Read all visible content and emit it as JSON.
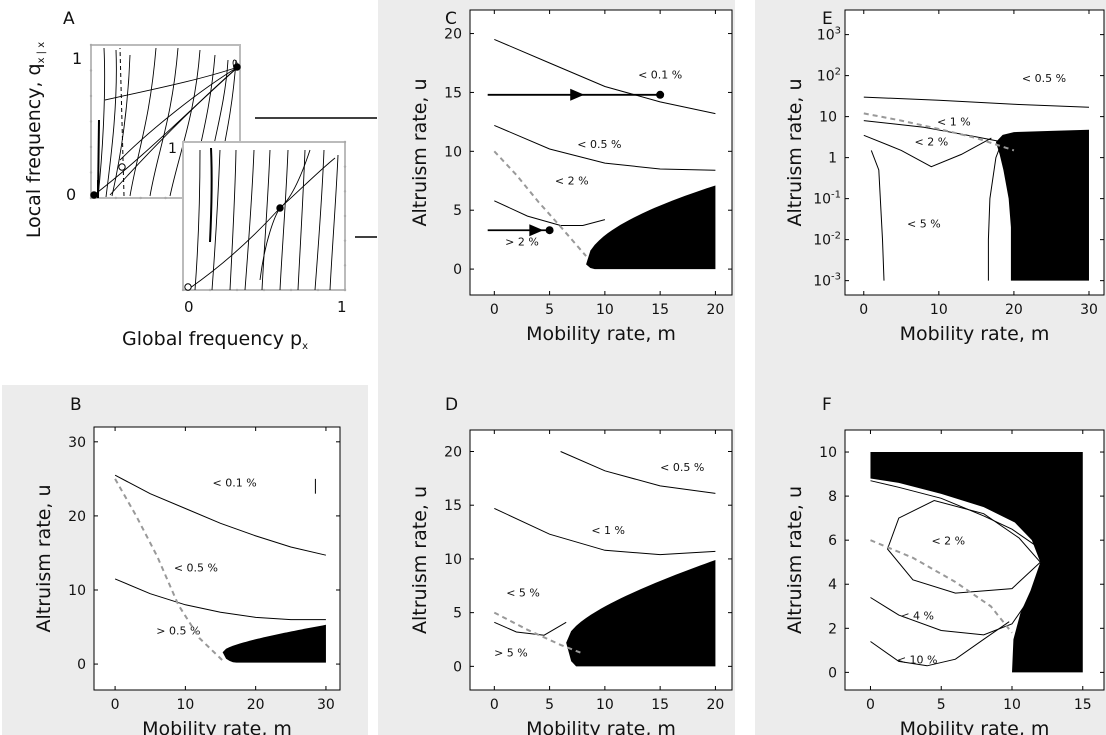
{
  "chart_data": [
    {
      "panel": "A",
      "type": "line",
      "xlabel": "Global frequency p",
      "xlabel_sub": "x",
      "ylabel": "Local frequency, q",
      "ylabel_sub": "x | x",
      "back_ticks": {
        "y": [
          "0",
          "1"
        ],
        "x_mark": "1"
      },
      "front_ticks": {
        "x": [
          "0",
          "1"
        ]
      },
      "xlim": [
        0,
        1
      ],
      "ylim": [
        0,
        1
      ],
      "back_points": [
        {
          "x": 0.0,
          "y": 0.0,
          "kind": "stable"
        },
        {
          "x": 0.22,
          "y": 0.22,
          "kind": "unstable"
        },
        {
          "x": 1.0,
          "y": 1.0,
          "kind": "stable"
        }
      ],
      "front_points": [
        {
          "x": 0.0,
          "y": 0.0,
          "kind": "unstable"
        },
        {
          "x": 0.6,
          "y": 0.6,
          "kind": "stable"
        }
      ]
    },
    {
      "panel": "B",
      "type": "line",
      "xlabel": "Mobility rate, m",
      "ylabel": "Altruism rate, u",
      "xlim": [
        -3,
        32
      ],
      "ylim": [
        -3.5,
        32
      ],
      "xticks": [
        0,
        10,
        20,
        30
      ],
      "yticks": [
        0,
        10,
        20,
        30
      ],
      "contours": [
        {
          "label": "< 0.1 %",
          "label_at": [
            17,
            24
          ],
          "points": [
            [
              0,
              25.5
            ],
            [
              5,
              23
            ],
            [
              10,
              21
            ],
            [
              15,
              19
            ],
            [
              20,
              17.3
            ],
            [
              25,
              15.8
            ],
            [
              30,
              14.7
            ]
          ]
        },
        {
          "label": "< 0.5 %",
          "label_at": [
            11.5,
            12.5
          ],
          "points": [
            [
              0,
              11.5
            ],
            [
              5,
              9.5
            ],
            [
              10,
              8
            ],
            [
              15,
              7
            ],
            [
              20,
              6.3
            ],
            [
              25,
              6
            ],
            [
              30,
              6
            ]
          ]
        }
      ],
      "region_labels": [
        {
          "text": "> 0.5 %",
          "at": [
            9,
            4
          ]
        }
      ],
      "dashed": [
        [
          0,
          25
        ],
        [
          3,
          20
        ],
        [
          6,
          14.5
        ],
        [
          9,
          8
        ],
        [
          12,
          3.5
        ],
        [
          15.5,
          0.3
        ]
      ],
      "filled_region": {
        "m_start": 15.3,
        "m_end": 30,
        "u_min": 0.2,
        "u_max_at_end": 5.3
      },
      "tick_mark": {
        "x": 28.5,
        "y_from": 23,
        "y_to": 25
      }
    },
    {
      "panel": "C",
      "type": "line",
      "xlabel": "Mobility rate, m",
      "ylabel": "Altruism rate, u",
      "xlim": [
        -2.2,
        21.5
      ],
      "ylim": [
        -2.2,
        22
      ],
      "xticks": [
        0,
        5,
        10,
        15,
        20
      ],
      "yticks": [
        0,
        5,
        10,
        15,
        20
      ],
      "contours": [
        {
          "label": "< 0.1 %",
          "label_at": [
            15,
            16.2
          ],
          "points": [
            [
              0,
              19.5
            ],
            [
              5,
              17.5
            ],
            [
              10,
              15.5
            ],
            [
              15,
              14.2
            ],
            [
              20,
              13.2
            ]
          ]
        },
        {
          "label": "< 0.5 %",
          "label_at": [
            9.5,
            10.3
          ],
          "points": [
            [
              0,
              12.2
            ],
            [
              5,
              10.2
            ],
            [
              10,
              9
            ],
            [
              15,
              8.5
            ],
            [
              20,
              8.4
            ]
          ]
        },
        {
          "label": "< 2 %",
          "label_at": [
            7,
            7.2
          ],
          "points": [
            [
              0,
              5.8
            ],
            [
              3,
              4.5
            ],
            [
              6,
              3.7
            ],
            [
              8,
              3.7
            ],
            [
              10,
              4.2
            ]
          ]
        }
      ],
      "region_labels": [
        {
          "text": "> 2 %",
          "at": [
            2.5,
            2
          ]
        }
      ],
      "dashed": [
        [
          0,
          10
        ],
        [
          2,
          8
        ],
        [
          4,
          5.7
        ],
        [
          6,
          3.6
        ],
        [
          8.3,
          1.1
        ]
      ],
      "filled_region": {
        "m_start": 8.3,
        "m_end": 20,
        "u_min": 0,
        "u_max_at_end": 7.1
      },
      "arrows": [
        {
          "from": [
            -0.6,
            14.8
          ],
          "mid": [
            7.5,
            14.8
          ],
          "to": [
            15,
            14.8
          ]
        },
        {
          "from": [
            -0.6,
            3.3
          ],
          "mid": [
            3.8,
            3.3
          ],
          "to": [
            5,
            3.3
          ]
        }
      ],
      "connectors": [
        {
          "from": [
            255,
            118
          ],
          "to": [
            377,
            118
          ]
        },
        {
          "from": [
            355,
            237
          ],
          "to": [
            377,
            237
          ]
        }
      ]
    },
    {
      "panel": "D",
      "type": "line",
      "xlabel": "Mobility rate, m",
      "ylabel": "Altruism rate, u",
      "xlim": [
        -2.2,
        21.5
      ],
      "ylim": [
        -2.2,
        22
      ],
      "xticks": [
        0,
        5,
        10,
        15,
        20
      ],
      "yticks": [
        0,
        5,
        10,
        15,
        20
      ],
      "contours": [
        {
          "label": "< 0.5 %",
          "label_at": [
            17,
            18.2
          ],
          "points": [
            [
              6,
              20
            ],
            [
              10,
              18.2
            ],
            [
              15,
              16.8
            ],
            [
              20,
              16.1
            ]
          ]
        },
        {
          "label": "< 1 %",
          "label_at": [
            10.3,
            12.3
          ],
          "points": [
            [
              0,
              14.7
            ],
            [
              5,
              12.3
            ],
            [
              10,
              10.8
            ],
            [
              15,
              10.4
            ],
            [
              20,
              10.7
            ]
          ]
        },
        {
          "label": "< 5 %",
          "label_at": [
            2.6,
            6.5
          ],
          "points": [
            [
              0,
              4.1
            ],
            [
              2,
              3.2
            ],
            [
              4.5,
              2.9
            ],
            [
              6.5,
              4.1
            ]
          ]
        }
      ],
      "region_labels": [
        {
          "text": "> 5 %",
          "at": [
            1.5,
            0.9
          ]
        }
      ],
      "dashed": [
        [
          0,
          5
        ],
        [
          3,
          3.4
        ],
        [
          6,
          2
        ],
        [
          8,
          1.2
        ]
      ],
      "filled_region": {
        "m_start": 6.5,
        "m_end": 20,
        "u_min": 0,
        "u_max_at_end": 9.9
      }
    },
    {
      "panel": "E",
      "type": "line",
      "xlabel": "Mobility rate, m",
      "ylabel": "Altruism rate, u",
      "yscale": "log",
      "xlim": [
        -2.5,
        32
      ],
      "ylim_log10": [
        -3.35,
        3.6
      ],
      "xticks": [
        0,
        10,
        20,
        30
      ],
      "yticks": [
        "10^-3",
        "10^-2",
        "10^-1",
        "1",
        "10",
        "10^2",
        "10^3"
      ],
      "contours": [
        {
          "label": "< 0.5 %",
          "label_at": [
            24,
            70
          ],
          "points": [
            [
              0,
              30
            ],
            [
              10,
              25
            ],
            [
              20,
              20
            ],
            [
              30,
              17
            ]
          ]
        },
        {
          "label": "< 1 %",
          "label_at": [
            12,
            6
          ],
          "points": [
            [
              0,
              8
            ],
            [
              8,
              5.5
            ],
            [
              15,
              3.2
            ],
            [
              18,
              2.5
            ]
          ]
        },
        {
          "label": "< 2 %",
          "label_at": [
            9,
            2
          ],
          "points": [
            [
              0,
              3.5
            ],
            [
              5,
              1.5
            ],
            [
              9,
              0.6
            ],
            [
              13,
              1.2
            ],
            [
              17,
              3
            ]
          ]
        },
        {
          "label": "< 5 %",
          "label_at": [
            8,
            0.02
          ],
          "points": [
            [
              1,
              1.5
            ],
            [
              2,
              0.5
            ],
            [
              2.5,
              0.01
            ],
            [
              2.7,
              0.001
            ]
          ]
        },
        {
          "label": "",
          "points": [
            [
              18.6,
              3
            ],
            [
              17.6,
              1
            ],
            [
              16.8,
              0.1
            ],
            [
              16.6,
              0.01
            ],
            [
              16.6,
              0.001
            ]
          ]
        }
      ],
      "dashed": [
        [
          0,
          12
        ],
        [
          5,
          8
        ],
        [
          10,
          5
        ],
        [
          15,
          3
        ],
        [
          20,
          1.5
        ]
      ],
      "filled_region": {
        "m_start": 17.6,
        "m_end": 30,
        "u_min": 0.001,
        "u_max_at_end": 4.8
      }
    },
    {
      "panel": "F",
      "type": "line",
      "xlabel": "Mobility rate, m",
      "ylabel": "Altruism rate, u",
      "xlim": [
        -1.8,
        16.5
      ],
      "ylim": [
        -0.8,
        11
      ],
      "xticks": [
        0,
        5,
        10,
        15
      ],
      "yticks": [
        0,
        2,
        4,
        6,
        8,
        10
      ],
      "contours": [
        {
          "label": "< 2 %",
          "label_at": [
            5.5,
            5.8
          ],
          "points": [
            [
              12,
              5
            ],
            [
              10,
              3.8
            ],
            [
              6,
              3.6
            ],
            [
              3,
              4.2
            ],
            [
              1.2,
              5.6
            ],
            [
              2,
              7
            ],
            [
              4.5,
              7.8
            ],
            [
              8,
              7.2
            ],
            [
              10.5,
              6.1
            ],
            [
              12,
              5
            ]
          ]
        },
        {
          "label": "< 4 %",
          "label_at": [
            3.3,
            2.4
          ],
          "points": [
            [
              0,
              3.4
            ],
            [
              2,
              2.6
            ],
            [
              5,
              1.9
            ],
            [
              8,
              1.7
            ],
            [
              10,
              2.2
            ],
            [
              11.5,
              3.6
            ]
          ]
        },
        {
          "label": "< 10 %",
          "label_at": [
            3.3,
            0.4
          ],
          "points": [
            [
              0,
              1.4
            ],
            [
              2,
              0.5
            ],
            [
              4,
              0.3
            ],
            [
              6,
              0.6
            ],
            [
              8,
              1.5
            ],
            [
              9.8,
              2.3
            ]
          ]
        },
        {
          "label": "",
          "points": [
            [
              0,
              8.7
            ],
            [
              2,
              8.4
            ],
            [
              5,
              7.9
            ],
            [
              8,
              7.1
            ],
            [
              10,
              6.5
            ],
            [
              11.8,
              5.7
            ]
          ]
        }
      ],
      "dashed": [
        [
          0,
          6
        ],
        [
          3,
          5.2
        ],
        [
          6,
          4.1
        ],
        [
          8.5,
          3
        ],
        [
          10,
          1.8
        ]
      ],
      "filled_region": {
        "m_start": 0,
        "m_end": 15,
        "u_min": 0,
        "u_max_at_end": 10
      }
    }
  ]
}
